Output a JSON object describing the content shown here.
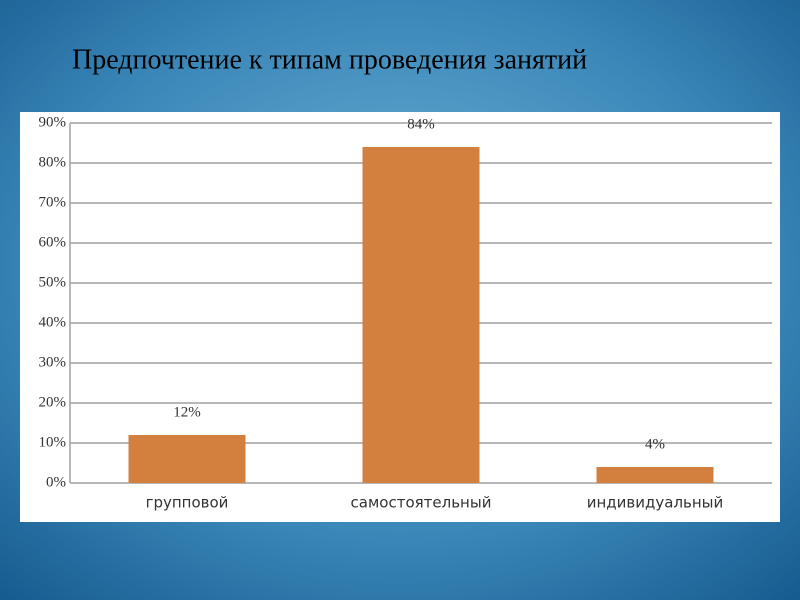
{
  "chart_data": {
    "type": "bar",
    "title": "Предпочтение к типам проведения занятий",
    "categories": [
      "групповой",
      "самостоятельный",
      "индивидуальный"
    ],
    "values": [
      12,
      84,
      4
    ],
    "value_labels": [
      "12%",
      "84%",
      "4%"
    ],
    "color": "#d3803f",
    "ylim": [
      0,
      90
    ],
    "yticks": [
      {
        "value": 0,
        "label": "0%"
      },
      {
        "value": 10,
        "label": "10%"
      },
      {
        "value": 20,
        "label": "20%"
      },
      {
        "value": 30,
        "label": "30%"
      },
      {
        "value": 40,
        "label": "40%"
      },
      {
        "value": 50,
        "label": "50%"
      },
      {
        "value": 60,
        "label": "60%"
      },
      {
        "value": 70,
        "label": "70%"
      },
      {
        "value": 80,
        "label": "80%"
      },
      {
        "value": 90,
        "label": "90%"
      }
    ],
    "grid": true
  }
}
